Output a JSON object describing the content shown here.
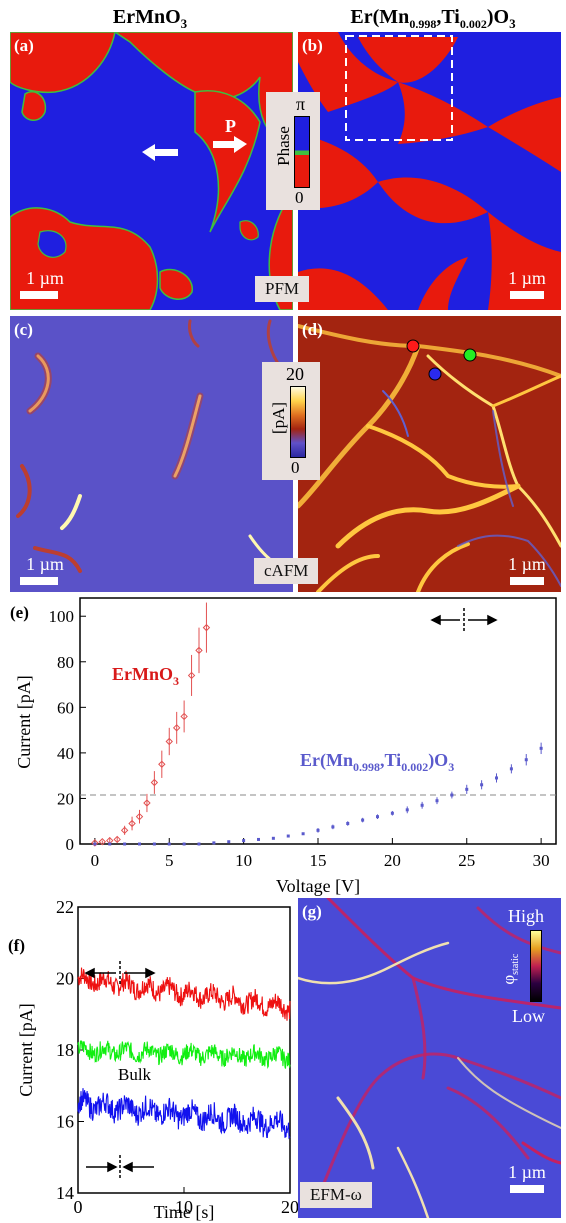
{
  "headers": {
    "left": "ErMnO",
    "left_sub": "3",
    "right_a": "Er(Mn",
    "right_b": "0.998",
    "right_c": ",Ti",
    "right_d": "0.002",
    "right_e": ")O",
    "right_f": "3"
  },
  "panels": {
    "a": "(a)",
    "b": "(b)",
    "c": "(c)",
    "d": "(d)",
    "e": "(e)",
    "f": "(f)",
    "g": "(g)"
  },
  "scale": "1 µm",
  "pfm": {
    "tag": "PFM",
    "p_label": "P",
    "colorbar_label": "Phase",
    "colorbar_top": "π",
    "colorbar_bottom": "0",
    "colors": {
      "blue": "#1f1fe0",
      "red": "#e81a0d",
      "wall": "#3fbf3f"
    }
  },
  "cafm": {
    "tag": "cAFM",
    "colorbar_label": "[pA]",
    "colorbar_top": "20",
    "colorbar_bottom": "0",
    "markers": [
      "red",
      "blue",
      "green"
    ]
  },
  "efm": {
    "tag": "EFM-ω",
    "colorbar_top": "High",
    "colorbar_bottom": "Low",
    "colorbar_label": "φ",
    "colorbar_label_sub": "static"
  },
  "chart_data": [
    {
      "type": "scatter",
      "panel": "(e)",
      "xlabel": "Voltage [V]",
      "ylabel": "Current [pA]",
      "xlim": [
        -1,
        31
      ],
      "ylim": [
        0,
        108
      ],
      "xticks": [
        0,
        5,
        10,
        15,
        20,
        25,
        30
      ],
      "yticks": [
        0,
        20,
        40,
        60,
        80,
        100
      ],
      "reference_line": 21.5,
      "series": [
        {
          "name": "ErMnO3",
          "label_main": "ErMnO",
          "label_sub": "3",
          "color": "#e25050",
          "x": [
            0,
            0.5,
            1,
            1.5,
            2,
            2.5,
            3,
            3.5,
            4,
            4.5,
            5,
            5.5,
            6,
            6.5,
            7,
            7.5
          ],
          "y": [
            0.5,
            1,
            1.5,
            2,
            6,
            9,
            12,
            18,
            27,
            35,
            45,
            51,
            56,
            74,
            85,
            95
          ],
          "err": [
            0.5,
            0.5,
            1,
            1,
            2,
            3,
            3,
            4,
            5,
            6,
            6,
            7,
            7,
            9,
            10,
            11
          ]
        },
        {
          "name": "Er(Mn0.998,Ti0.002)O3",
          "label_parts": [
            "Er(Mn",
            "0.998",
            ",Ti",
            "0.002",
            ")O",
            "3"
          ],
          "color": "#5a5acc",
          "x": [
            0,
            1,
            2,
            3,
            4,
            5,
            6,
            7,
            8,
            9,
            10,
            11,
            12,
            13,
            14,
            15,
            16,
            17,
            18,
            19,
            20,
            21,
            22,
            23,
            24,
            25,
            26,
            27,
            28,
            29,
            30
          ],
          "y": [
            0,
            0,
            0,
            0,
            0,
            0,
            0,
            0,
            0.5,
            1,
            1.5,
            2,
            2.5,
            3.5,
            4.5,
            6,
            7.5,
            9,
            10.5,
            12,
            13.5,
            15,
            17,
            19,
            21.5,
            24,
            26,
            29,
            33,
            37,
            42
          ],
          "err": [
            0,
            0,
            0,
            0,
            0,
            0,
            0,
            0,
            0.5,
            0.5,
            0.5,
            0.5,
            0.5,
            0.5,
            0.5,
            1,
            1,
            1,
            1,
            1,
            1,
            1.5,
            1.5,
            1.5,
            1.5,
            2,
            2,
            2,
            2,
            2.5,
            2.5
          ]
        }
      ]
    },
    {
      "type": "line",
      "panel": "(f)",
      "xlabel": "Time [s]",
      "ylabel": "Current [pA]",
      "xlim": [
        0,
        20
      ],
      "ylim": [
        14,
        22
      ],
      "xticks": [
        0,
        10,
        20
      ],
      "yticks": [
        14,
        16,
        18,
        20,
        22
      ],
      "annotation": "Bulk",
      "series": [
        {
          "name": "red",
          "color": "#ee1111",
          "start": 20.0,
          "end": 19.2,
          "amp": 0.35
        },
        {
          "name": "green",
          "color": "#11ee11",
          "start": 18.0,
          "end": 17.8,
          "amp": 0.3
        },
        {
          "name": "blue",
          "color": "#1111ee",
          "start": 16.5,
          "end": 15.9,
          "amp": 0.4
        }
      ]
    }
  ]
}
